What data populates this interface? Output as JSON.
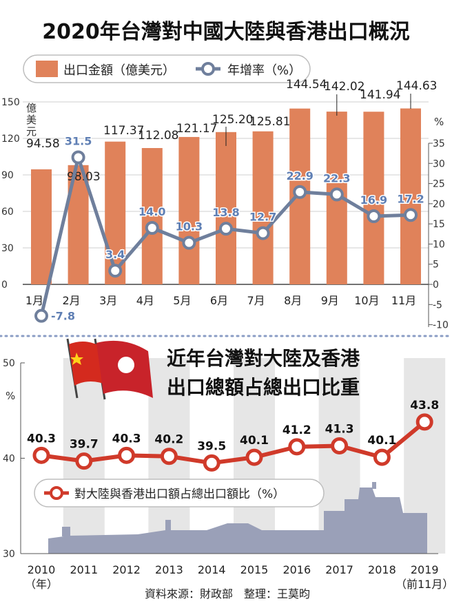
{
  "chart_data": [
    {
      "type": "bar+line",
      "title": "2020年台灣對中國大陸與香港出口概況",
      "categories": [
        "1月",
        "2月",
        "3月",
        "4月",
        "5月",
        "6月",
        "7月",
        "8月",
        "9月",
        "10月",
        "11月"
      ],
      "series": [
        {
          "name": "出口金額（億美元）",
          "type": "bar",
          "axis": "left",
          "values": [
            94.58,
            98.03,
            117.37,
            112.08,
            121.17,
            125.2,
            125.81,
            144.54,
            142.02,
            141.94,
            144.63
          ],
          "labels": [
            "94.58",
            "98.03",
            "117.37",
            "112.08",
            "121.17",
            "125.20",
            "125.81",
            "144.54",
            "142.02",
            "141.94",
            "144.63"
          ]
        },
        {
          "name": "年增率（%）",
          "type": "line",
          "axis": "right",
          "values": [
            -7.8,
            31.5,
            3.4,
            14.0,
            10.3,
            13.8,
            12.7,
            22.9,
            22.3,
            16.9,
            17.2
          ],
          "labels": [
            "-7.8",
            "31.5",
            "3.4",
            "14.0",
            "10.3",
            "13.8",
            "12.7",
            "22.9",
            "22.3",
            "16.9",
            "17.2"
          ]
        }
      ],
      "y_left": {
        "label": "億美元",
        "ylim": [
          0,
          150
        ],
        "ticks": [
          "0",
          "30",
          "60",
          "90",
          "120",
          "150"
        ]
      },
      "y_right": {
        "label": "%",
        "ylim": [
          -10,
          35
        ],
        "ticks": [
          "-10",
          "-5",
          "0",
          "5",
          "10",
          "15",
          "20",
          "25",
          "30",
          "35"
        ]
      },
      "legend": "top-left",
      "colors": {
        "bar": "#e0825a",
        "line": "#6f7f9c",
        "line_label": "#5f7fb4",
        "bar_label": "#222222"
      }
    },
    {
      "type": "line",
      "title_lines": [
        "近年台灣對大陸及香港",
        "出口總額占總出口比重"
      ],
      "categories": [
        "2010",
        "2011",
        "2012",
        "2013",
        "2014",
        "2015",
        "2016",
        "2017",
        "2018",
        "2019"
      ],
      "category_sublabels": [
        "（年）",
        "",
        "",
        "",
        "",
        "",
        "",
        "",
        "",
        "（前11月）"
      ],
      "series": [
        {
          "name": "對大陸與香港出口額占總出口額比（%）",
          "values": [
            40.3,
            39.7,
            40.3,
            40.2,
            39.5,
            40.1,
            41.2,
            41.3,
            40.1,
            43.8
          ],
          "labels": [
            "40.3",
            "39.7",
            "40.3",
            "40.2",
            "39.5",
            "40.1",
            "41.2",
            "41.3",
            "40.1",
            "43.8"
          ]
        }
      ],
      "y": {
        "label": "%",
        "ylim": [
          30,
          50
        ],
        "ticks": [
          "30",
          "40",
          "50"
        ]
      },
      "legend": "bottom-left",
      "colors": {
        "line": "#d03a2a",
        "stripe": "#e6e6e6",
        "ship": "#9aa0b8"
      }
    }
  ],
  "source": "資料來源：財政部　整理：王莫昀"
}
